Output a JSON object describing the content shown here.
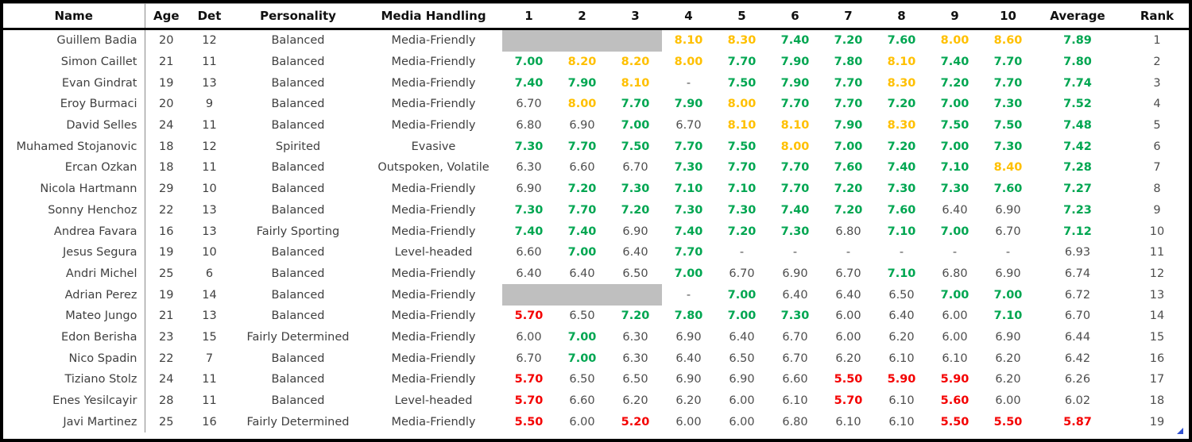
{
  "table": {
    "columns": [
      "Name",
      "Age",
      "Det",
      "Personality",
      "Media Handling",
      "1",
      "2",
      "3",
      "4",
      "5",
      "6",
      "7",
      "8",
      "9",
      "10",
      "Average",
      "Rank"
    ],
    "rows": [
      [
        "Guillem Badia",
        "20",
        "12",
        "Balanced",
        "Media-Friendly",
        null,
        null,
        null,
        "8.10",
        "8.30",
        "7.40",
        "7.20",
        "7.60",
        "8.00",
        "8.60",
        "7.89",
        "1"
      ],
      [
        "Simon Caillet",
        "21",
        "11",
        "Balanced",
        "Media-Friendly",
        "7.00",
        "8.20",
        "8.20",
        "8.00",
        "7.70",
        "7.90",
        "7.80",
        "8.10",
        "7.40",
        "7.70",
        "7.80",
        "2"
      ],
      [
        "Evan Gindrat",
        "19",
        "13",
        "Balanced",
        "Media-Friendly",
        "7.40",
        "7.90",
        "8.10",
        "-",
        "7.50",
        "7.90",
        "7.70",
        "8.30",
        "7.20",
        "7.70",
        "7.74",
        "3"
      ],
      [
        "Eroy Burmaci",
        "20",
        "9",
        "Balanced",
        "Media-Friendly",
        "6.70",
        "8.00",
        "7.70",
        "7.90",
        "8.00",
        "7.70",
        "7.70",
        "7.20",
        "7.00",
        "7.30",
        "7.52",
        "4"
      ],
      [
        "David Selles",
        "24",
        "11",
        "Balanced",
        "Media-Friendly",
        "6.80",
        "6.90",
        "7.00",
        "6.70",
        "8.10",
        "8.10",
        "7.90",
        "8.30",
        "7.50",
        "7.50",
        "7.48",
        "5"
      ],
      [
        "Muhamed Stojanovic",
        "18",
        "12",
        "Spirited",
        "Evasive",
        "7.30",
        "7.70",
        "7.50",
        "7.70",
        "7.50",
        "8.00",
        "7.00",
        "7.20",
        "7.00",
        "7.30",
        "7.42",
        "6"
      ],
      [
        "Ercan Ozkan",
        "18",
        "11",
        "Balanced",
        "Outspoken, Volatile",
        "6.30",
        "6.60",
        "6.70",
        "7.30",
        "7.70",
        "7.70",
        "7.60",
        "7.40",
        "7.10",
        "8.40",
        "7.28",
        "7"
      ],
      [
        "Nicola Hartmann",
        "29",
        "10",
        "Balanced",
        "Media-Friendly",
        "6.90",
        "7.20",
        "7.30",
        "7.10",
        "7.10",
        "7.70",
        "7.20",
        "7.30",
        "7.30",
        "7.60",
        "7.27",
        "8"
      ],
      [
        "Sonny Henchoz",
        "22",
        "13",
        "Balanced",
        "Media-Friendly",
        "7.30",
        "7.70",
        "7.20",
        "7.30",
        "7.30",
        "7.40",
        "7.20",
        "7.60",
        "6.40",
        "6.90",
        "7.23",
        "9"
      ],
      [
        "Andrea Favara",
        "16",
        "13",
        "Fairly Sporting",
        "Media-Friendly",
        "7.40",
        "7.40",
        "6.90",
        "7.40",
        "7.20",
        "7.30",
        "6.80",
        "7.10",
        "7.00",
        "6.70",
        "7.12",
        "10"
      ],
      [
        "Jesus Segura",
        "19",
        "10",
        "Balanced",
        "Level-headed",
        "6.60",
        "7.00",
        "6.40",
        "7.70",
        "-",
        "-",
        "-",
        "-",
        "-",
        "-",
        "6.93",
        "11"
      ],
      [
        "Andri Michel",
        "25",
        "6",
        "Balanced",
        "Media-Friendly",
        "6.40",
        "6.40",
        "6.50",
        "7.00",
        "6.70",
        "6.90",
        "6.70",
        "7.10",
        "6.80",
        "6.90",
        "6.74",
        "12"
      ],
      [
        "Adrian Perez",
        "19",
        "14",
        "Balanced",
        "Media-Friendly",
        null,
        null,
        null,
        "-",
        "7.00",
        "6.40",
        "6.40",
        "6.50",
        "7.00",
        "7.00",
        "6.72",
        "13"
      ],
      [
        "Mateo Jungo",
        "21",
        "13",
        "Balanced",
        "Media-Friendly",
        "5.70",
        "6.50",
        "7.20",
        "7.80",
        "7.00",
        "7.30",
        "6.00",
        "6.40",
        "6.00",
        "7.10",
        "6.70",
        "14"
      ],
      [
        "Edon Berisha",
        "23",
        "15",
        "Fairly Determined",
        "Media-Friendly",
        "6.00",
        "7.00",
        "6.30",
        "6.90",
        "6.40",
        "6.70",
        "6.00",
        "6.20",
        "6.00",
        "6.90",
        "6.44",
        "15"
      ],
      [
        "Nico Spadin",
        "22",
        "7",
        "Balanced",
        "Media-Friendly",
        "6.70",
        "7.00",
        "6.30",
        "6.40",
        "6.50",
        "6.70",
        "6.20",
        "6.10",
        "6.10",
        "6.20",
        "6.42",
        "16"
      ],
      [
        "Tiziano Stolz",
        "24",
        "11",
        "Balanced",
        "Media-Friendly",
        "5.70",
        "6.50",
        "6.50",
        "6.90",
        "6.90",
        "6.60",
        "5.50",
        "5.90",
        "5.90",
        "6.20",
        "6.26",
        "17"
      ],
      [
        "Enes Yesilcayir",
        "28",
        "11",
        "Balanced",
        "Level-headed",
        "5.70",
        "6.60",
        "6.20",
        "6.20",
        "6.00",
        "6.10",
        "5.70",
        "6.10",
        "5.60",
        "6.00",
        "6.02",
        "18"
      ],
      [
        "Javi Martinez",
        "25",
        "16",
        "Fairly Determined",
        "Media-Friendly",
        "5.50",
        "6.00",
        "5.20",
        "6.00",
        "6.00",
        "6.80",
        "6.10",
        "6.10",
        "5.50",
        "5.50",
        "5.87",
        "19"
      ]
    ]
  },
  "colors": {
    "high_rating": "#ffc000",
    "good_rating": "#00a651",
    "low_rating": "#f40000",
    "neutral_text": "#4d4d4d",
    "placeholder_gray": "#bfbfbf",
    "handle_blue": "#3050d0"
  },
  "icons": {
    "corner": "resize-handle-icon"
  }
}
